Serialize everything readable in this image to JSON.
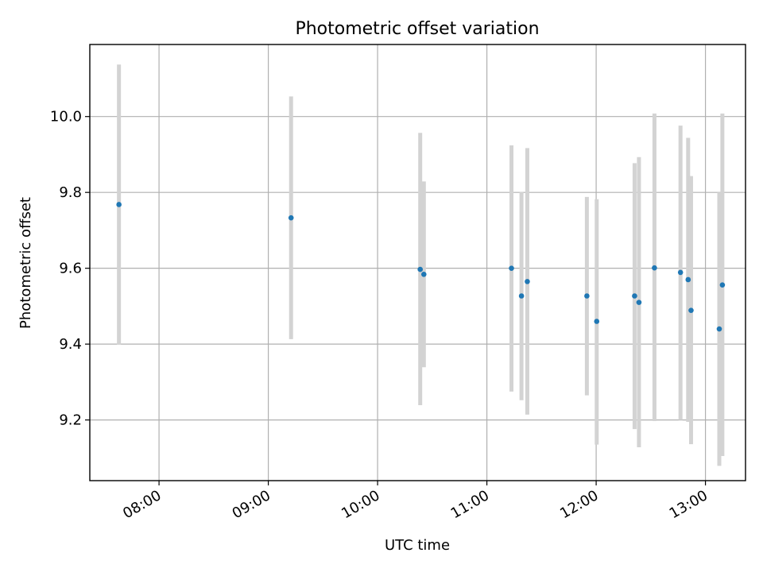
{
  "chart_data": {
    "type": "scatter",
    "title": "Photometric offset variation",
    "xlabel": "UTC time",
    "ylabel": "Photometric offset",
    "grid": true,
    "xlim_minutes": [
      442,
      802
    ],
    "ylim": [
      9.04,
      10.19
    ],
    "x_ticks": [
      {
        "minutes": 480,
        "label": "08:00"
      },
      {
        "minutes": 540,
        "label": "09:00"
      },
      {
        "minutes": 600,
        "label": "10:00"
      },
      {
        "minutes": 660,
        "label": "11:00"
      },
      {
        "minutes": 720,
        "label": "12:00"
      },
      {
        "minutes": 780,
        "label": "13:00"
      }
    ],
    "y_ticks": [
      {
        "value": 9.2,
        "label": "9.2"
      },
      {
        "value": 9.4,
        "label": "9.4"
      },
      {
        "value": 9.6,
        "label": "9.6"
      },
      {
        "value": 9.8,
        "label": "9.8"
      },
      {
        "value": 10.0,
        "label": "10.0"
      }
    ],
    "point_color": "#1f77b4",
    "errorbar_color": "#d3d3d3",
    "points": [
      {
        "minutes": 458.0,
        "y": 9.768,
        "lo": 9.399,
        "hi": 10.137
      },
      {
        "minutes": 552.5,
        "y": 9.733,
        "lo": 9.413,
        "hi": 10.053
      },
      {
        "minutes": 623.4,
        "y": 9.597,
        "lo": 9.239,
        "hi": 9.957
      },
      {
        "minutes": 625.4,
        "y": 9.584,
        "lo": 9.339,
        "hi": 9.829
      },
      {
        "minutes": 673.5,
        "y": 9.6,
        "lo": 9.275,
        "hi": 9.924
      },
      {
        "minutes": 679.0,
        "y": 9.527,
        "lo": 9.252,
        "hi": 9.801
      },
      {
        "minutes": 682.2,
        "y": 9.565,
        "lo": 9.214,
        "hi": 9.917
      },
      {
        "minutes": 714.9,
        "y": 9.527,
        "lo": 9.265,
        "hi": 9.788
      },
      {
        "minutes": 720.3,
        "y": 9.46,
        "lo": 9.135,
        "hi": 9.782
      },
      {
        "minutes": 741.1,
        "y": 9.527,
        "lo": 9.176,
        "hi": 9.877
      },
      {
        "minutes": 743.5,
        "y": 9.51,
        "lo": 9.128,
        "hi": 9.893
      },
      {
        "minutes": 752.0,
        "y": 9.601,
        "lo": 9.197,
        "hi": 10.008
      },
      {
        "minutes": 766.3,
        "y": 9.589,
        "lo": 9.2,
        "hi": 9.976
      },
      {
        "minutes": 770.5,
        "y": 9.57,
        "lo": 9.195,
        "hi": 9.944
      },
      {
        "minutes": 772.1,
        "y": 9.489,
        "lo": 9.136,
        "hi": 9.843
      },
      {
        "minutes": 787.6,
        "y": 9.44,
        "lo": 9.079,
        "hi": 9.8
      },
      {
        "minutes": 789.3,
        "y": 9.556,
        "lo": 9.105,
        "hi": 10.008
      }
    ]
  }
}
